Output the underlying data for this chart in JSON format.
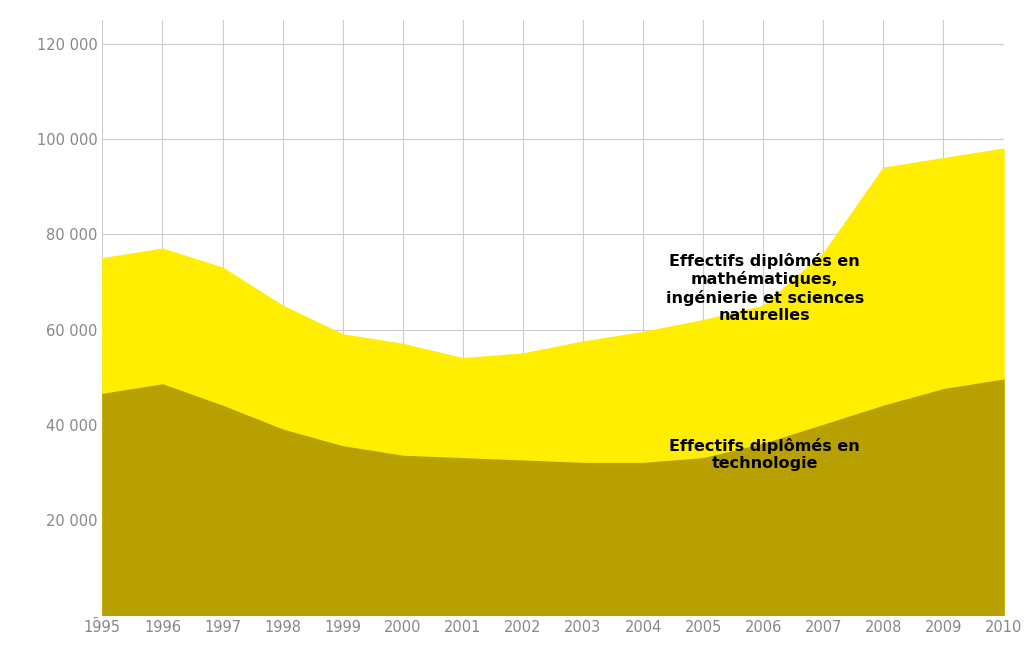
{
  "years": [
    1995,
    1996,
    1997,
    1998,
    1999,
    2000,
    2001,
    2002,
    2003,
    2004,
    2005,
    2006,
    2007,
    2008,
    2009,
    2010
  ],
  "techno": [
    46500,
    48500,
    44000,
    39000,
    35500,
    33500,
    33000,
    32500,
    32000,
    32000,
    33000,
    36000,
    40000,
    44000,
    47500,
    49500
  ],
  "math_sci": [
    75000,
    77000,
    73000,
    65000,
    59000,
    57000,
    54000,
    55000,
    57500,
    59500,
    62000,
    65000,
    76000,
    94000,
    96000,
    98000
  ],
  "color_techno": "#b8a000",
  "color_math_sci": "#ffee00",
  "label_techno": "Effectifs diplômés en\ntechnologie",
  "label_math_sci": "Effectifs diplômés en\nmathématiques,\ningénierie et sciences\nnaturelles",
  "ylim": [
    0,
    125000
  ],
  "yticks": [
    0,
    20000,
    40000,
    60000,
    80000,
    100000,
    120000
  ],
  "background_color": "#ffffff",
  "grid_color": "#cccccc"
}
